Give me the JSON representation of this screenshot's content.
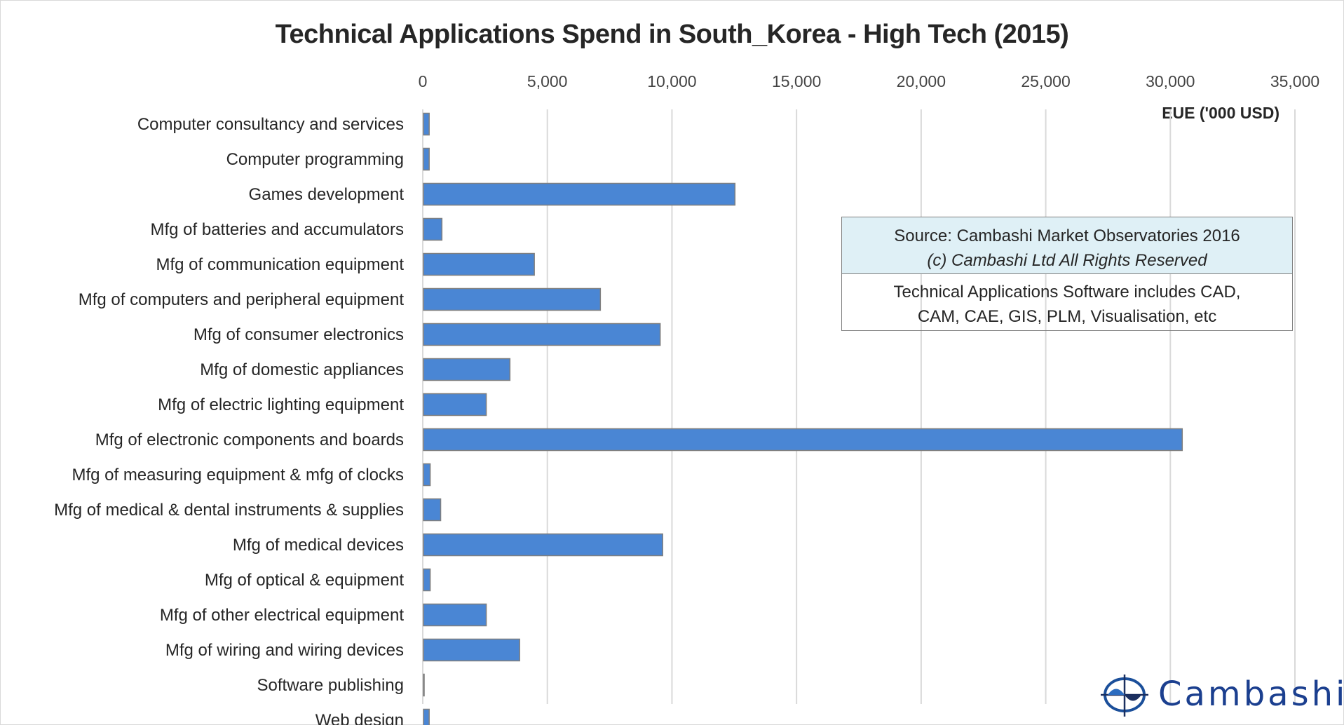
{
  "chart_data": {
    "type": "bar",
    "orientation": "horizontal",
    "title": "Technical Applications Spend in South_Korea - High Tech (2015)",
    "xlabel": "EUE ('000 USD)",
    "ylabel": "",
    "xlim": [
      0,
      35000
    ],
    "xticks": [
      "0",
      "5,000",
      "10,000",
      "15,000",
      "20,000",
      "25,000",
      "30,000",
      "35,000"
    ],
    "xtick_values": [
      0,
      5000,
      10000,
      15000,
      20000,
      25000,
      30000,
      35000
    ],
    "grid": true,
    "axis_position": "top",
    "bar_color": "#4a86d4",
    "categories": [
      "Computer consultancy and services",
      "Computer programming",
      "Games development",
      "Mfg of batteries and accumulators",
      "Mfg of communication equipment",
      "Mfg of computers and peripheral equipment",
      "Mfg of consumer electronics",
      "Mfg of domestic appliances",
      "Mfg of electric lighting equipment",
      "Mfg of electronic components and boards",
      "Mfg of measuring equipment & mfg of clocks",
      "Mfg of medical & dental instruments & supplies",
      "Mfg of medical devices",
      "Mfg of optical & equipment",
      "Mfg of other electrical equipment",
      "Mfg of wiring and wiring devices",
      "Software publishing",
      "Web design"
    ],
    "values": [
      230,
      230,
      12500,
      740,
      4450,
      7100,
      9500,
      3470,
      2520,
      30450,
      270,
      690,
      9600,
      270,
      2520,
      3860,
      20,
      230
    ]
  },
  "note": {
    "source": "Source: Cambashi Market Observatories 2016",
    "copyright": "(c) Cambashi Ltd All Rights Reserved",
    "includes_line1": "Technical Applications Software includes CAD,",
    "includes_line2": "CAM, CAE, GIS, PLM, Visualisation, etc"
  },
  "logo": {
    "text": "Cambashi",
    "color": "#1b3f8f"
  }
}
